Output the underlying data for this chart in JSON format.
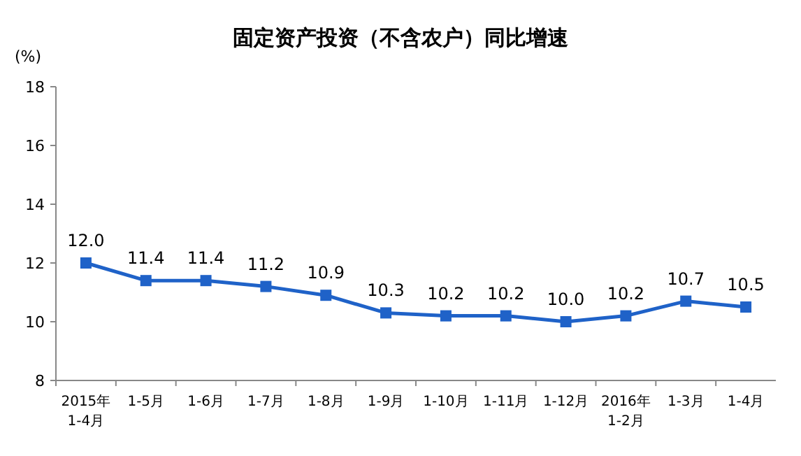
{
  "chart_data": {
    "type": "line",
    "title": "固定资产投资（不含农户）同比增速",
    "ylabel": "(%)",
    "categories": [
      "2015年\n1-4月",
      "1-5月",
      "1-6月",
      "1-7月",
      "1-8月",
      "1-9月",
      "1-10月",
      "1-11月",
      "1-12月",
      "2016年\n1-2月",
      "1-3月",
      "1-4月"
    ],
    "series": [
      {
        "color": "#1f62c8",
        "values": [
          12.0,
          11.4,
          11.4,
          11.2,
          10.9,
          10.3,
          10.2,
          10.2,
          10.0,
          10.2,
          10.7,
          10.5
        ],
        "value_labels": [
          "12.0",
          "11.4",
          "11.4",
          "11.2",
          "10.9",
          "10.3",
          "10.2",
          "10.2",
          "10.0",
          "10.2",
          "10.7",
          "10.5"
        ]
      }
    ],
    "ylim": [
      8,
      18
    ],
    "yticks": [
      8,
      10,
      12,
      14,
      16,
      18
    ],
    "marker": "square",
    "line_style": "solid"
  }
}
